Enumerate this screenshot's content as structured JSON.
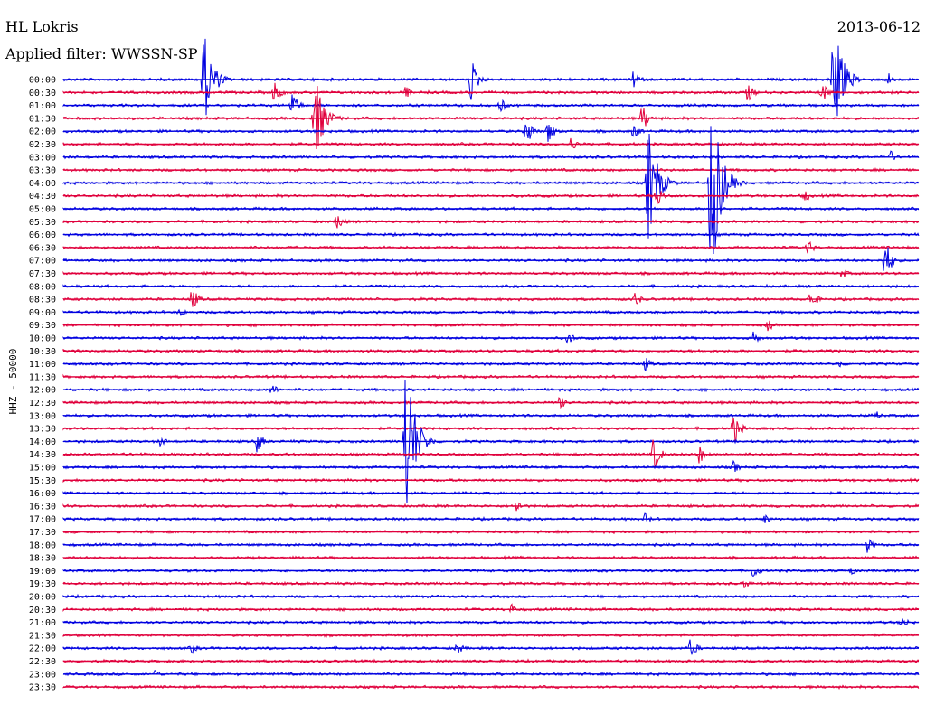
{
  "header": {
    "station": "HL Lokris",
    "filter": "Applied filter: WWSSN-SP",
    "date": "2013-06-12"
  },
  "channel_label": "HHZ - 50000",
  "chart_data": {
    "type": "seismogram",
    "title": "HL Lokris",
    "subtitle": "Applied filter: WWSSN-SP",
    "date": "2013-06-12",
    "ylabel": "HHZ - 50000",
    "colors": [
      "#0000e0",
      "#e0003c"
    ],
    "trace_minutes": 30,
    "rows": [
      "00:00",
      "00:30",
      "01:00",
      "01:30",
      "02:00",
      "02:30",
      "03:00",
      "03:30",
      "04:00",
      "04:30",
      "05:00",
      "05:30",
      "06:00",
      "06:30",
      "07:00",
      "07:30",
      "08:00",
      "08:30",
      "09:00",
      "09:30",
      "10:00",
      "10:30",
      "11:00",
      "11:30",
      "12:00",
      "12:30",
      "13:00",
      "13:30",
      "14:00",
      "14:30",
      "15:00",
      "15:30",
      "16:00",
      "16:30",
      "17:00",
      "17:30",
      "18:00",
      "18:30",
      "19:00",
      "19:30",
      "20:00",
      "20:30",
      "21:00",
      "21:30",
      "22:00",
      "22:30",
      "23:00",
      "23:30"
    ],
    "events": [
      {
        "row": 0,
        "minute": 4.9,
        "amplitude": 60
      },
      {
        "row": 0,
        "minute": 14.3,
        "amplitude": 28
      },
      {
        "row": 0,
        "minute": 20.0,
        "amplitude": 12
      },
      {
        "row": 0,
        "minute": 27.0,
        "amplitude": 75
      },
      {
        "row": 0,
        "minute": 28.9,
        "amplitude": 10
      },
      {
        "row": 1,
        "minute": 7.4,
        "amplitude": 14
      },
      {
        "row": 1,
        "minute": 12.0,
        "amplitude": 8
      },
      {
        "row": 1,
        "minute": 24.0,
        "amplitude": 12
      },
      {
        "row": 1,
        "minute": 26.6,
        "amplitude": 14
      },
      {
        "row": 2,
        "minute": 8.0,
        "amplitude": 18
      },
      {
        "row": 2,
        "minute": 15.3,
        "amplitude": 10
      },
      {
        "row": 3,
        "minute": 8.8,
        "amplitude": 55
      },
      {
        "row": 3,
        "minute": 20.3,
        "amplitude": 18
      },
      {
        "row": 4,
        "minute": 16.2,
        "amplitude": 22
      },
      {
        "row": 4,
        "minute": 17.0,
        "amplitude": 16
      },
      {
        "row": 4,
        "minute": 20.0,
        "amplitude": 10
      },
      {
        "row": 5,
        "minute": 17.8,
        "amplitude": 9
      },
      {
        "row": 6,
        "minute": 29.0,
        "amplitude": 8
      },
      {
        "row": 8,
        "minute": 20.5,
        "amplitude": 75
      },
      {
        "row": 8,
        "minute": 22.7,
        "amplitude": 130
      },
      {
        "row": 9,
        "minute": 20.8,
        "amplitude": 16
      },
      {
        "row": 9,
        "minute": 26.0,
        "amplitude": 8
      },
      {
        "row": 11,
        "minute": 9.6,
        "amplitude": 12
      },
      {
        "row": 13,
        "minute": 26.1,
        "amplitude": 10
      },
      {
        "row": 14,
        "minute": 28.8,
        "amplitude": 30
      },
      {
        "row": 15,
        "minute": 27.3,
        "amplitude": 7
      },
      {
        "row": 17,
        "minute": 4.5,
        "amplitude": 16
      },
      {
        "row": 17,
        "minute": 20.0,
        "amplitude": 12
      },
      {
        "row": 17,
        "minute": 26.2,
        "amplitude": 14
      },
      {
        "row": 18,
        "minute": 4.1,
        "amplitude": 6
      },
      {
        "row": 19,
        "minute": 24.7,
        "amplitude": 8
      },
      {
        "row": 20,
        "minute": 17.7,
        "amplitude": 9
      },
      {
        "row": 20,
        "minute": 24.2,
        "amplitude": 9
      },
      {
        "row": 22,
        "minute": 20.4,
        "amplitude": 9
      },
      {
        "row": 22,
        "minute": 27.2,
        "amplitude": 6
      },
      {
        "row": 24,
        "minute": 7.3,
        "amplitude": 8
      },
      {
        "row": 25,
        "minute": 17.4,
        "amplitude": 9
      },
      {
        "row": 26,
        "minute": 28.5,
        "amplitude": 6
      },
      {
        "row": 27,
        "minute": 23.5,
        "amplitude": 22
      },
      {
        "row": 28,
        "minute": 3.4,
        "amplitude": 7
      },
      {
        "row": 28,
        "minute": 6.8,
        "amplitude": 14
      },
      {
        "row": 28,
        "minute": 12.0,
        "amplitude": 110
      },
      {
        "row": 29,
        "minute": 20.7,
        "amplitude": 22
      },
      {
        "row": 29,
        "minute": 22.3,
        "amplitude": 12
      },
      {
        "row": 30,
        "minute": 23.5,
        "amplitude": 8
      },
      {
        "row": 33,
        "minute": 15.9,
        "amplitude": 9
      },
      {
        "row": 34,
        "minute": 20.4,
        "amplitude": 7
      },
      {
        "row": 34,
        "minute": 24.6,
        "amplitude": 7
      },
      {
        "row": 36,
        "minute": 28.2,
        "amplitude": 10
      },
      {
        "row": 38,
        "minute": 24.2,
        "amplitude": 10
      },
      {
        "row": 38,
        "minute": 27.6,
        "amplitude": 6
      },
      {
        "row": 39,
        "minute": 23.9,
        "amplitude": 7
      },
      {
        "row": 41,
        "minute": 15.7,
        "amplitude": 7
      },
      {
        "row": 42,
        "minute": 29.4,
        "amplitude": 9
      },
      {
        "row": 44,
        "minute": 4.5,
        "amplitude": 7
      },
      {
        "row": 44,
        "minute": 13.8,
        "amplitude": 9
      },
      {
        "row": 44,
        "minute": 22.0,
        "amplitude": 13
      },
      {
        "row": 46,
        "minute": 3.2,
        "amplitude": 7
      }
    ]
  }
}
